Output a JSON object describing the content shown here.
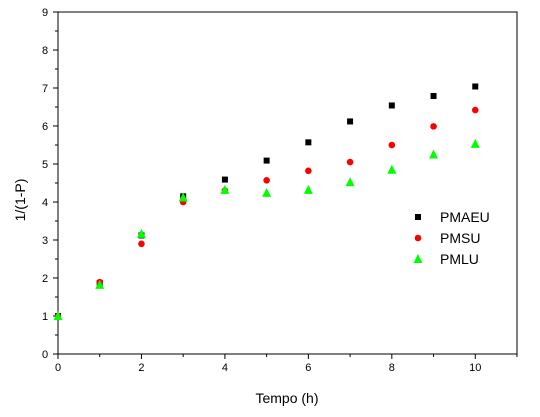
{
  "chart_data": {
    "type": "scatter",
    "title": "",
    "xlabel": "Tempo (h)",
    "ylabel": "1/(1-P)",
    "xlim": [
      0,
      11
    ],
    "ylim": [
      0,
      9
    ],
    "x_ticks": [
      "0",
      "2",
      "4",
      "6",
      "8",
      "10"
    ],
    "y_ticks": [
      "0",
      "1",
      "2",
      "3",
      "4",
      "5",
      "6",
      "7",
      "8",
      "9"
    ],
    "grid": false,
    "legend_position": "right",
    "series": [
      {
        "name": "PMAEU",
        "marker": "square",
        "color": "#000000",
        "x": [
          0,
          1,
          2,
          3,
          4,
          5,
          6,
          7,
          8,
          9,
          10
        ],
        "y": [
          1.0,
          1.87,
          3.12,
          4.15,
          4.59,
          5.09,
          5.57,
          6.12,
          6.54,
          6.79,
          7.04
        ]
      },
      {
        "name": "PMSU",
        "marker": "circle",
        "color": "#ff0000",
        "x": [
          0,
          1,
          2,
          3,
          4,
          5,
          6,
          7,
          8,
          9,
          10
        ],
        "y": [
          1.0,
          1.89,
          2.9,
          4.0,
          4.3,
          4.57,
          4.82,
          5.05,
          5.5,
          5.99,
          6.42
        ]
      },
      {
        "name": "PMLU",
        "marker": "triangle",
        "color": "#00ff00",
        "x": [
          0,
          1,
          2,
          3,
          4,
          5,
          6,
          7,
          8,
          9,
          10
        ],
        "y": [
          1.0,
          1.82,
          3.16,
          4.12,
          4.32,
          4.24,
          4.32,
          4.52,
          4.85,
          5.25,
          5.53
        ]
      }
    ]
  }
}
